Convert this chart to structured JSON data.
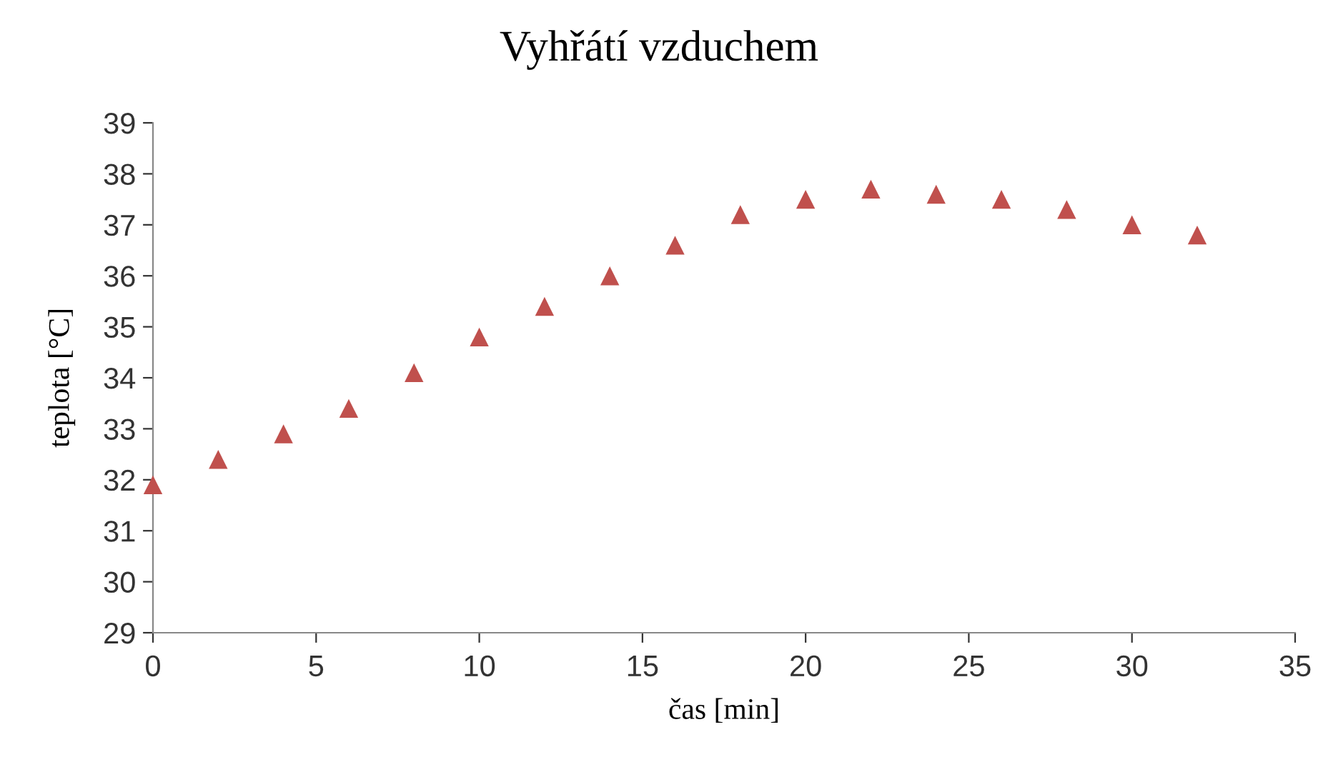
{
  "chart_data": {
    "type": "scatter",
    "title": "Vyhřátí vzduchem",
    "xlabel": "čas [min]",
    "ylabel": "teplota [°C]",
    "x": [
      0,
      2,
      4,
      6,
      8,
      10,
      12,
      14,
      16,
      18,
      20,
      22,
      24,
      26,
      28,
      30,
      32
    ],
    "series": [
      {
        "color": "#c0504d",
        "values": [
          31.9,
          32.4,
          32.9,
          33.4,
          34.1,
          34.8,
          35.4,
          36.0,
          36.6,
          37.2,
          37.5,
          37.7,
          37.6,
          37.5,
          37.3,
          37.0,
          36.8
        ]
      }
    ],
    "xlim": [
      0,
      35
    ],
    "xticks": [
      0,
      5,
      10,
      15,
      20,
      25,
      30,
      35
    ],
    "ylim": [
      29,
      39
    ],
    "yticks": [
      29,
      30,
      31,
      32,
      33,
      34,
      35,
      36,
      37,
      38,
      39
    ],
    "marker": "triangle",
    "grid": false,
    "legend": false
  }
}
